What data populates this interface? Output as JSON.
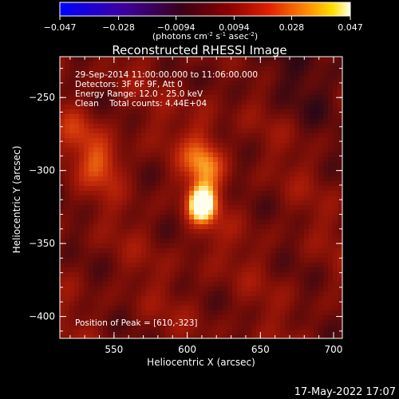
{
  "chart_data": {
    "type": "heatmap",
    "title": "Reconstructed RHESSI Image",
    "xlabel": "Heliocentric X (arcsec)",
    "ylabel": "Heliocentric Y (arcsec)",
    "xlim": [
      513,
      706
    ],
    "ylim": [
      -415,
      -222
    ],
    "x_ticks": [
      "550",
      "600",
      "650",
      "700"
    ],
    "y_ticks": [
      "-250",
      "-300",
      "-350",
      "-400"
    ],
    "colorbar": {
      "min": -0.047,
      "max": 0.047,
      "ticks": [
        "-0.047",
        "-0.028",
        "-0.0094",
        "0.0094",
        "0.028",
        "0.047"
      ],
      "label_main": "(photons cm",
      "label_exp1": "-2",
      "label_mid1": " s",
      "label_exp2": "-1",
      "label_mid2": " asec",
      "label_exp3": "-2",
      "label_end": ")"
    },
    "info_lines": [
      "29-Sep-2014 11:00:00.000 to 11:06:00.000",
      "Detectors: 3F 6F 9F, Att 0",
      "Energy Range: 12.0 - 25.0 keV",
      "Clean    Total counts: 4.44E+04"
    ],
    "peak_label": "Position of Peak = [610,-323]",
    "peak": [
      610,
      -323
    ],
    "sources": [
      {
        "x": 610,
        "y": -323,
        "amp": 1.0
      },
      {
        "x": 543,
        "y": -295,
        "amp": 0.42
      },
      {
        "x": 612,
        "y": -295,
        "amp": 0.35
      },
      {
        "x": 527,
        "y": -275,
        "amp": 0.28
      }
    ]
  },
  "footer": {
    "timestamp": "17-May-2022 17:07"
  }
}
